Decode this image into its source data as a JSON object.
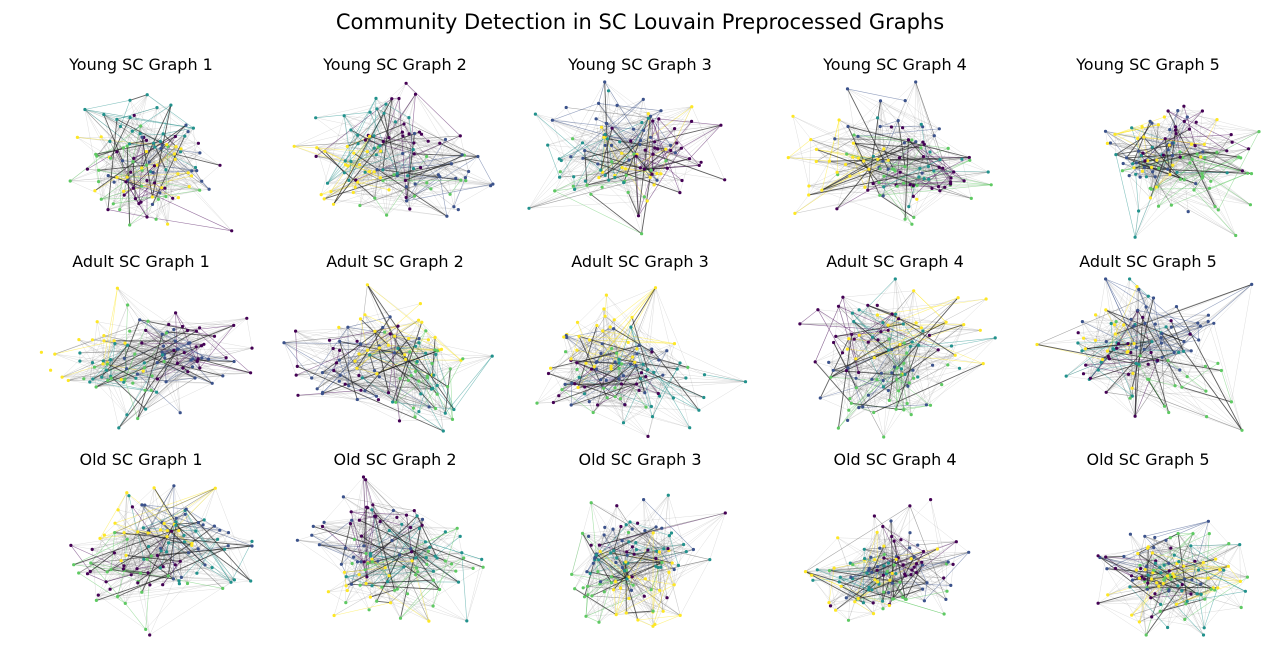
{
  "title": "Community Detection in SC Louvain Preprocessed Graphs",
  "colormap": [
    "#440154",
    "#3b528b",
    "#21918c",
    "#5ec962",
    "#fde725"
  ],
  "edge_color": "#555555",
  "node_count": 110,
  "panels": [
    {
      "title": "Young SC Graph 1"
    },
    {
      "title": "Young SC Graph 2"
    },
    {
      "title": "Young SC Graph 3"
    },
    {
      "title": "Young SC Graph 4"
    },
    {
      "title": "Young SC Graph 5"
    },
    {
      "title": "Adult SC Graph 1"
    },
    {
      "title": "Adult SC Graph 2"
    },
    {
      "title": "Adult SC Graph 3"
    },
    {
      "title": "Adult SC Graph 4"
    },
    {
      "title": "Adult SC Graph 5"
    },
    {
      "title": "Old SC Graph 1"
    },
    {
      "title": "Old SC Graph 2"
    },
    {
      "title": "Old SC Graph 3"
    },
    {
      "title": "Old SC Graph 4"
    },
    {
      "title": "Old SC Graph 5"
    }
  ]
}
